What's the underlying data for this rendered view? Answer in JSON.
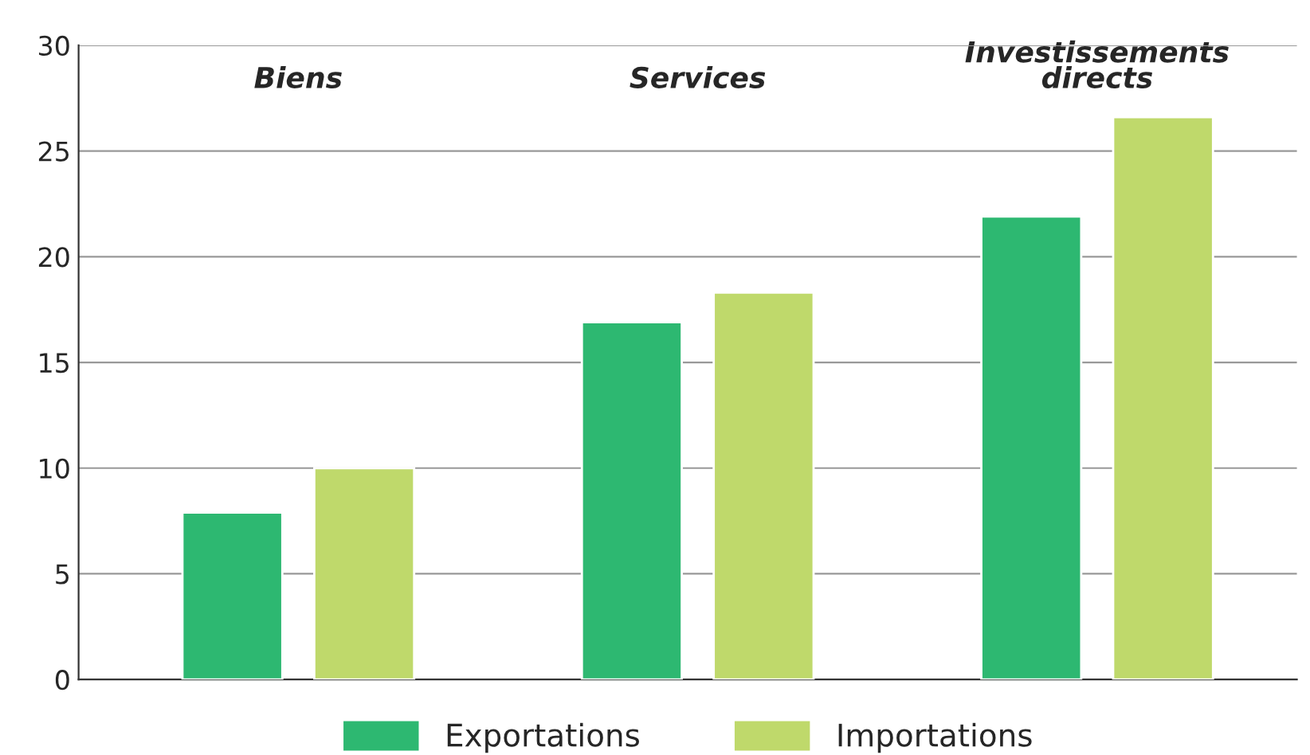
{
  "chart_data": {
    "type": "bar",
    "categories": [
      "Biens",
      "Services",
      "Investissements\ndirects"
    ],
    "series": [
      {
        "name": "Exportations",
        "color": "#2db871",
        "values": [
          7.9,
          16.9,
          21.9
        ]
      },
      {
        "name": "Importations",
        "color": "#bfd96b",
        "values": [
          10,
          18.3,
          26.6
        ]
      }
    ],
    "ylim": [
      0,
      30
    ],
    "yticks": [
      0,
      5,
      10,
      15,
      20,
      25,
      30
    ],
    "grid": "y",
    "legend": "bottom"
  }
}
